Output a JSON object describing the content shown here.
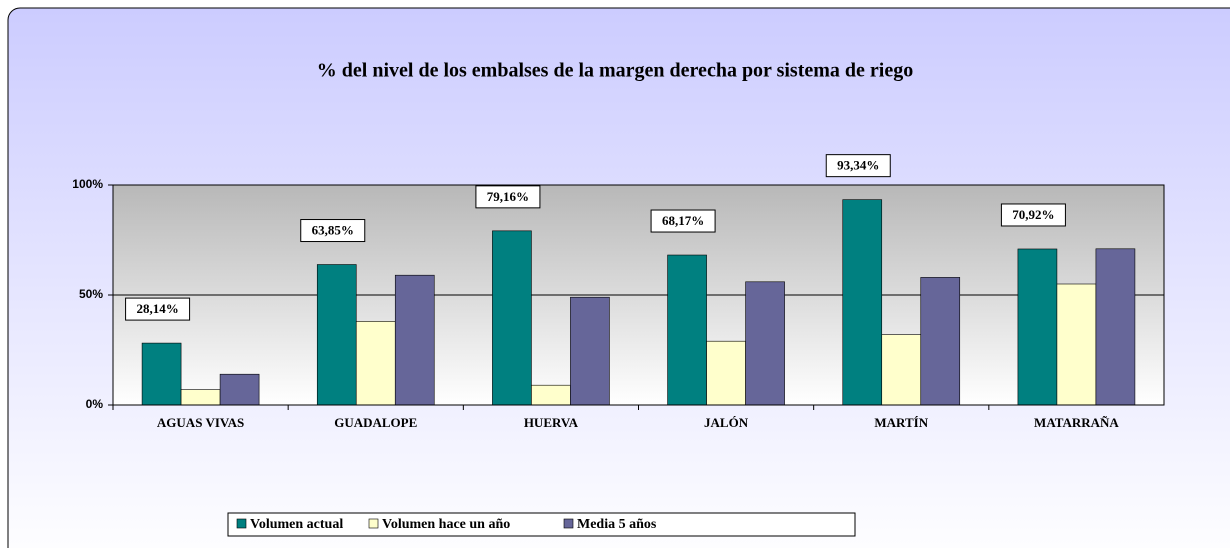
{
  "chart_data": {
    "type": "bar",
    "title": "% del nivel de los embalses de la margen derecha por sistema de riego",
    "categories": [
      "AGUAS VIVAS",
      "GUADALOPE",
      "HUERVA",
      "JALÓN",
      "MARTÍN",
      "MATARRAÑA"
    ],
    "series": [
      {
        "name": "Volumen actual",
        "color": "#008080",
        "values": [
          28.14,
          63.85,
          79.16,
          68.17,
          93.34,
          70.92
        ],
        "value_labels": [
          "28,14%",
          "63,85%",
          "79,16%",
          "68,17%",
          "93,34%",
          "70,92%"
        ]
      },
      {
        "name": "Volumen hace un año",
        "color": "#ffffcc",
        "values": [
          7,
          38,
          9,
          29,
          32,
          55
        ]
      },
      {
        "name": "Media 5 años",
        "color": "#666699",
        "values": [
          14,
          59,
          49,
          56,
          58,
          71
        ]
      }
    ],
    "ylim": [
      0,
      100
    ],
    "yticks": [
      {
        "value": 0,
        "label": "0%"
      },
      {
        "value": 50,
        "label": "50%"
      },
      {
        "value": 100,
        "label": "100%"
      }
    ],
    "grid": true,
    "legend": "bottom"
  }
}
